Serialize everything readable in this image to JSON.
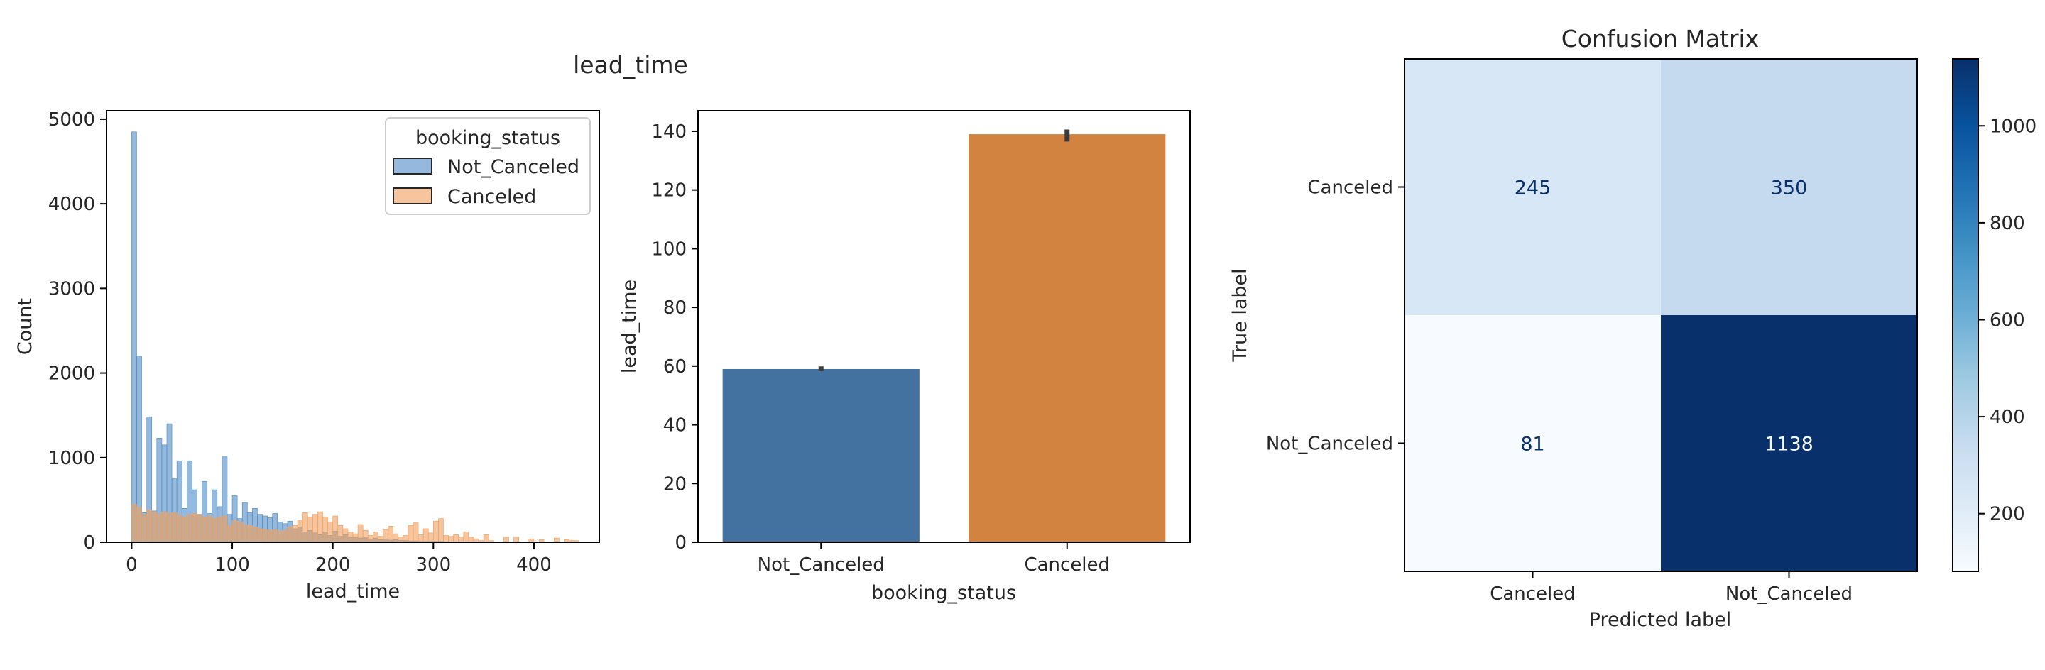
{
  "figure_title": "lead_time",
  "chart_data": [
    {
      "type": "bar",
      "subtype": "histogram",
      "xlabel": "lead_time",
      "ylabel": "Count",
      "xlim": [
        -25,
        465
      ],
      "ylim": [
        0,
        5100
      ],
      "xticks": [
        0,
        100,
        200,
        300,
        400
      ],
      "yticks": [
        0,
        1000,
        2000,
        3000,
        4000,
        5000
      ],
      "bin_width": 5,
      "legend": {
        "title": "booking_status",
        "placement": "top-right"
      },
      "series": [
        {
          "name": "Not_Canceled",
          "color": "#4c8ac4",
          "bins": [
            [
              0,
              4850
            ],
            [
              5,
              2200
            ],
            [
              10,
              350
            ],
            [
              15,
              1480
            ],
            [
              20,
              370
            ],
            [
              25,
              1230
            ],
            [
              30,
              1150
            ],
            [
              35,
              1400
            ],
            [
              40,
              750
            ],
            [
              45,
              960
            ],
            [
              50,
              400
            ],
            [
              55,
              960
            ],
            [
              60,
              620
            ],
            [
              65,
              330
            ],
            [
              70,
              720
            ],
            [
              75,
              340
            ],
            [
              80,
              620
            ],
            [
              85,
              420
            ],
            [
              90,
              1010
            ],
            [
              95,
              330
            ],
            [
              100,
              550
            ],
            [
              105,
              280
            ],
            [
              110,
              470
            ],
            [
              115,
              350
            ],
            [
              120,
              400
            ],
            [
              125,
              330
            ],
            [
              130,
              310
            ],
            [
              135,
              290
            ],
            [
              140,
              340
            ],
            [
              145,
              240
            ],
            [
              150,
              220
            ],
            [
              155,
              250
            ],
            [
              160,
              160
            ],
            [
              165,
              180
            ],
            [
              170,
              120
            ],
            [
              175,
              140
            ],
            [
              180,
              110
            ],
            [
              185,
              90
            ],
            [
              190,
              120
            ],
            [
              195,
              80
            ],
            [
              200,
              130
            ],
            [
              205,
              70
            ],
            [
              210,
              90
            ],
            [
              215,
              60
            ],
            [
              220,
              60
            ],
            [
              225,
              50
            ],
            [
              230,
              60
            ],
            [
              235,
              40
            ],
            [
              240,
              50
            ],
            [
              245,
              30
            ],
            [
              250,
              40
            ],
            [
              255,
              25
            ],
            [
              260,
              30
            ],
            [
              265,
              20
            ],
            [
              270,
              20
            ],
            [
              275,
              15
            ],
            [
              280,
              15
            ],
            [
              285,
              10
            ],
            [
              290,
              10
            ],
            [
              295,
              10
            ],
            [
              300,
              10
            ],
            [
              305,
              10
            ],
            [
              310,
              5
            ],
            [
              315,
              5
            ],
            [
              320,
              5
            ],
            [
              325,
              5
            ],
            [
              330,
              5
            ],
            [
              335,
              5
            ]
          ]
        },
        {
          "name": "Canceled",
          "color": "#f09f5c",
          "bins": [
            [
              0,
              450
            ],
            [
              5,
              410
            ],
            [
              10,
              330
            ],
            [
              15,
              380
            ],
            [
              20,
              360
            ],
            [
              25,
              330
            ],
            [
              30,
              360
            ],
            [
              35,
              340
            ],
            [
              40,
              350
            ],
            [
              45,
              320
            ],
            [
              50,
              300
            ],
            [
              55,
              330
            ],
            [
              60,
              340
            ],
            [
              65,
              330
            ],
            [
              70,
              300
            ],
            [
              75,
              310
            ],
            [
              80,
              280
            ],
            [
              85,
              300
            ],
            [
              90,
              310
            ],
            [
              95,
              200
            ],
            [
              100,
              260
            ],
            [
              105,
              240
            ],
            [
              110,
              210
            ],
            [
              115,
              200
            ],
            [
              120,
              180
            ],
            [
              125,
              160
            ],
            [
              130,
              150
            ],
            [
              135,
              140
            ],
            [
              140,
              150
            ],
            [
              145,
              130
            ],
            [
              150,
              140
            ],
            [
              155,
              180
            ],
            [
              160,
              200
            ],
            [
              165,
              260
            ],
            [
              170,
              350
            ],
            [
              175,
              300
            ],
            [
              180,
              330
            ],
            [
              185,
              360
            ],
            [
              190,
              300
            ],
            [
              195,
              240
            ],
            [
              200,
              310
            ],
            [
              205,
              200
            ],
            [
              210,
              160
            ],
            [
              215,
              120
            ],
            [
              220,
              100
            ],
            [
              225,
              210
            ],
            [
              230,
              140
            ],
            [
              235,
              80
            ],
            [
              240,
              120
            ],
            [
              245,
              70
            ],
            [
              250,
              150
            ],
            [
              255,
              190
            ],
            [
              260,
              100
            ],
            [
              265,
              60
            ],
            [
              270,
              80
            ],
            [
              275,
              200
            ],
            [
              280,
              230
            ],
            [
              285,
              90
            ],
            [
              290,
              160
            ],
            [
              295,
              110
            ],
            [
              300,
              250
            ],
            [
              305,
              280
            ],
            [
              310,
              80
            ],
            [
              315,
              70
            ],
            [
              320,
              90
            ],
            [
              325,
              60
            ],
            [
              330,
              120
            ],
            [
              335,
              60
            ],
            [
              340,
              40
            ],
            [
              345,
              20
            ],
            [
              350,
              90
            ],
            [
              355,
              20
            ],
            [
              370,
              60
            ],
            [
              380,
              60
            ],
            [
              395,
              40
            ],
            [
              405,
              30
            ],
            [
              420,
              50
            ],
            [
              430,
              30
            ],
            [
              435,
              20
            ],
            [
              440,
              20
            ]
          ]
        }
      ]
    },
    {
      "type": "bar",
      "xlabel": "booking_status",
      "ylabel": "lead_time",
      "categories": [
        "Not_Canceled",
        "Canceled"
      ],
      "values": [
        59,
        139
      ],
      "error_bars": [
        [
          58.3,
          59.9
        ],
        [
          136.5,
          140.6
        ]
      ],
      "colors": [
        "#4472a0",
        "#d38340"
      ],
      "ylim": [
        0,
        147
      ],
      "yticks": [
        0,
        20,
        40,
        60,
        80,
        100,
        120,
        140
      ]
    },
    {
      "type": "heatmap",
      "title": "Confusion Matrix",
      "xlabel": "Predicted label",
      "ylabel": "True label",
      "x_categories": [
        "Canceled",
        "Not_Canceled"
      ],
      "y_categories": [
        "Canceled",
        "Not_Canceled"
      ],
      "values": [
        [
          245,
          350
        ],
        [
          81,
          1138
        ]
      ],
      "colorscale": "Blues",
      "vmin": 81,
      "vmax": 1138,
      "colorbar_ticks": [
        200,
        400,
        600,
        800,
        1000
      ]
    }
  ]
}
